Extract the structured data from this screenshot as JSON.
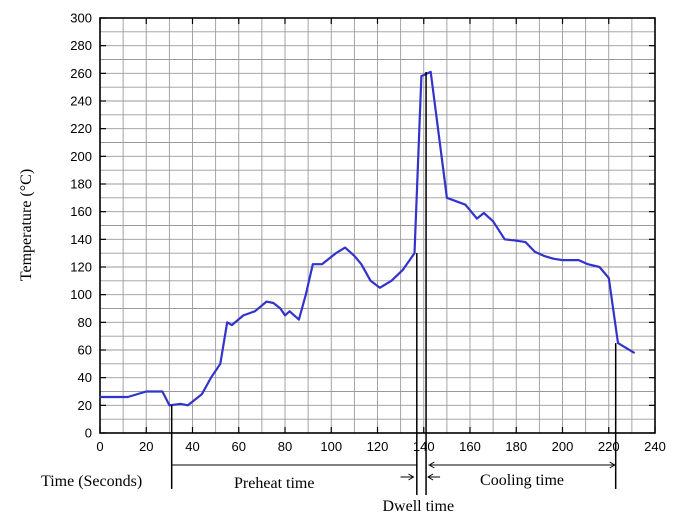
{
  "chart_data": {
    "type": "line",
    "title": "",
    "xlabel": "Time (Seconds)",
    "ylabel": "Temperature (°C)",
    "xlim": [
      0,
      240
    ],
    "ylim": [
      0,
      300
    ],
    "x_ticks": [
      0,
      20,
      40,
      60,
      80,
      100,
      120,
      140,
      160,
      180,
      200,
      220,
      240
    ],
    "y_ticks": [
      0,
      20,
      40,
      60,
      80,
      100,
      120,
      140,
      160,
      180,
      200,
      220,
      240,
      260,
      280,
      300
    ],
    "x_minor_step": 10,
    "y_minor_step": 10,
    "grid": true,
    "series_color": "#3333cc",
    "series": [
      {
        "name": "",
        "x": [
          0,
          12,
          20,
          27,
          30,
          35,
          38,
          44,
          48,
          52,
          55,
          57,
          62,
          67,
          72,
          75,
          78,
          80,
          82,
          86,
          89,
          92,
          96,
          102,
          106,
          110,
          113,
          117,
          121,
          126,
          131,
          136,
          139,
          143,
          150,
          158,
          163,
          166,
          170,
          175,
          180,
          184,
          188,
          192,
          196,
          200,
          207,
          211,
          216,
          220,
          224,
          231
        ],
        "y": [
          26,
          26,
          30,
          30,
          20,
          21,
          20,
          28,
          40,
          50,
          80,
          78,
          85,
          88,
          95,
          94,
          90,
          85,
          88,
          82,
          100,
          122,
          122,
          130,
          134,
          128,
          122,
          110,
          105,
          110,
          118,
          130,
          258,
          261,
          170,
          165,
          155,
          159,
          153,
          140,
          139,
          138,
          131,
          128,
          126,
          125,
          125,
          122,
          120,
          112,
          65,
          58
        ]
      }
    ],
    "annotations": [
      {
        "text": "Preheat time",
        "from": 31,
        "to": 137
      },
      {
        "text": "Dwell time",
        "from": 136,
        "to": 141
      },
      {
        "text": "Cooling time",
        "from": 142,
        "to": 223
      }
    ]
  }
}
